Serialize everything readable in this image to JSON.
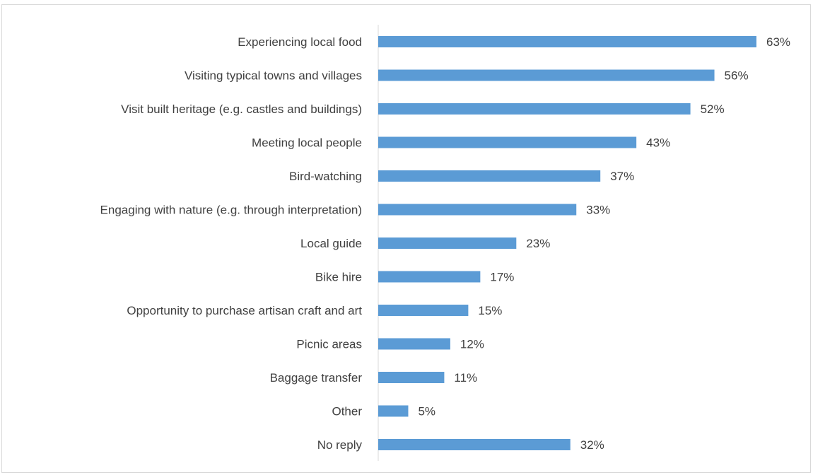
{
  "chart_data": {
    "type": "bar",
    "orientation": "horizontal",
    "title": "",
    "xlabel": "",
    "ylabel": "",
    "categories": [
      "Experiencing local food",
      "Visiting typical towns and villages",
      "Visit built heritage (e.g. castles and buildings)",
      "Meeting local people",
      "Bird-watching",
      "Engaging with nature (e.g. through interpretation)",
      "Local guide",
      "Bike hire",
      "Opportunity to purchase artisan craft and art",
      "Picnic areas",
      "Baggage transfer",
      "Other",
      "No reply"
    ],
    "values": [
      63,
      56,
      52,
      43,
      37,
      33,
      23,
      17,
      15,
      12,
      11,
      5,
      32
    ],
    "value_labels": [
      "63%",
      "56%",
      "52%",
      "43%",
      "37%",
      "33%",
      "23%",
      "17%",
      "15%",
      "12%",
      "11%",
      "5%",
      "32%"
    ],
    "value_unit": "%",
    "xlim": [
      0,
      63
    ],
    "grid": false,
    "legend": "none",
    "bar_color": "#5b9bd5",
    "axis_color": "#d9d9d9",
    "text_color": "#404040"
  }
}
